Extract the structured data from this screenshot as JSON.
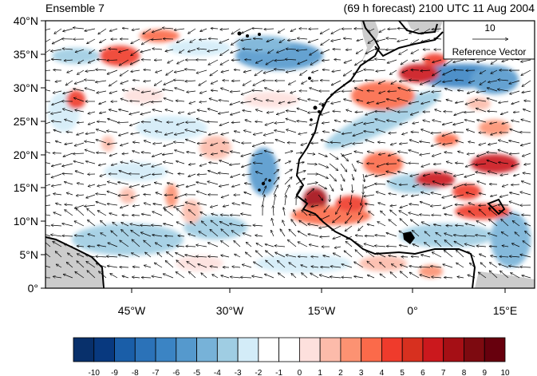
{
  "header": {
    "left_title": "Ensemble 7",
    "right_title": "(69 h forecast) 2100 UTC 11 Aug 2004"
  },
  "map": {
    "lon_range": [
      -60,
      20
    ],
    "lat_range": [
      0,
      40
    ],
    "lat_ticks": [
      "40°N",
      "35°N",
      "30°N",
      "25°N",
      "20°N",
      "15°N",
      "10°N",
      "5°N",
      "0°"
    ],
    "lon_ticks": [
      "45°W",
      "30°W",
      "15°W",
      "0°",
      "15°E"
    ],
    "reference_vector": {
      "magnitude": "10",
      "label": "Reference Vector"
    },
    "colors": {
      "land": "#cccccc",
      "coast": "#000000",
      "vector": "#000000"
    }
  },
  "colorbar": {
    "labels": [
      "-10",
      "-9",
      "-8",
      "-7",
      "-6",
      "-5",
      "-4",
      "-3",
      "-2",
      "-1",
      "0",
      "1",
      "2",
      "3",
      "4",
      "5",
      "6",
      "7",
      "8",
      "9",
      "10"
    ],
    "colors": [
      "#08306b",
      "#08397f",
      "#1a5ea8",
      "#2b72b8",
      "#3b84c4",
      "#5599cd",
      "#77b2d8",
      "#9fcde3",
      "#d3ecf8",
      "#ffffff",
      "#ffffff",
      "#fde0dd",
      "#fcbbaa",
      "#fc9272",
      "#fb6a4a",
      "#ef3b2c",
      "#d7301f",
      "#cb181d",
      "#a50f15",
      "#7d0a10",
      "#67000d"
    ]
  }
}
